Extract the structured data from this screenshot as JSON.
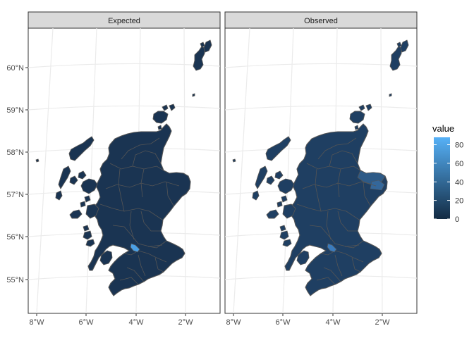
{
  "panels": [
    {
      "title": "Expected"
    },
    {
      "title": "Observed"
    }
  ],
  "x_ticks": [
    "8°W",
    "6°W",
    "4°W",
    "2°W"
  ],
  "y_ticks": [
    "55°N",
    "56°N",
    "57°N",
    "58°N",
    "59°N",
    "60°N"
  ],
  "legend": {
    "title": "value",
    "ticks": [
      "0",
      "20",
      "40",
      "60",
      "80"
    ],
    "range": [
      0,
      88
    ],
    "color_low": "#132b43",
    "color_high": "#56b1f7"
  },
  "map": {
    "region": "Scotland",
    "fill_expected": "#1a3452",
    "fill_observed": "#1f3f62",
    "hotspot_expected": "#4aa0e6",
    "hotspot_observed": "#3a7bbd",
    "northeast_observed": "#2d5a87",
    "border_color": "#555555",
    "panel_bg": "#ffffff",
    "grid_color": "#ebebeb",
    "strip_bg": "#d9d9d9"
  }
}
